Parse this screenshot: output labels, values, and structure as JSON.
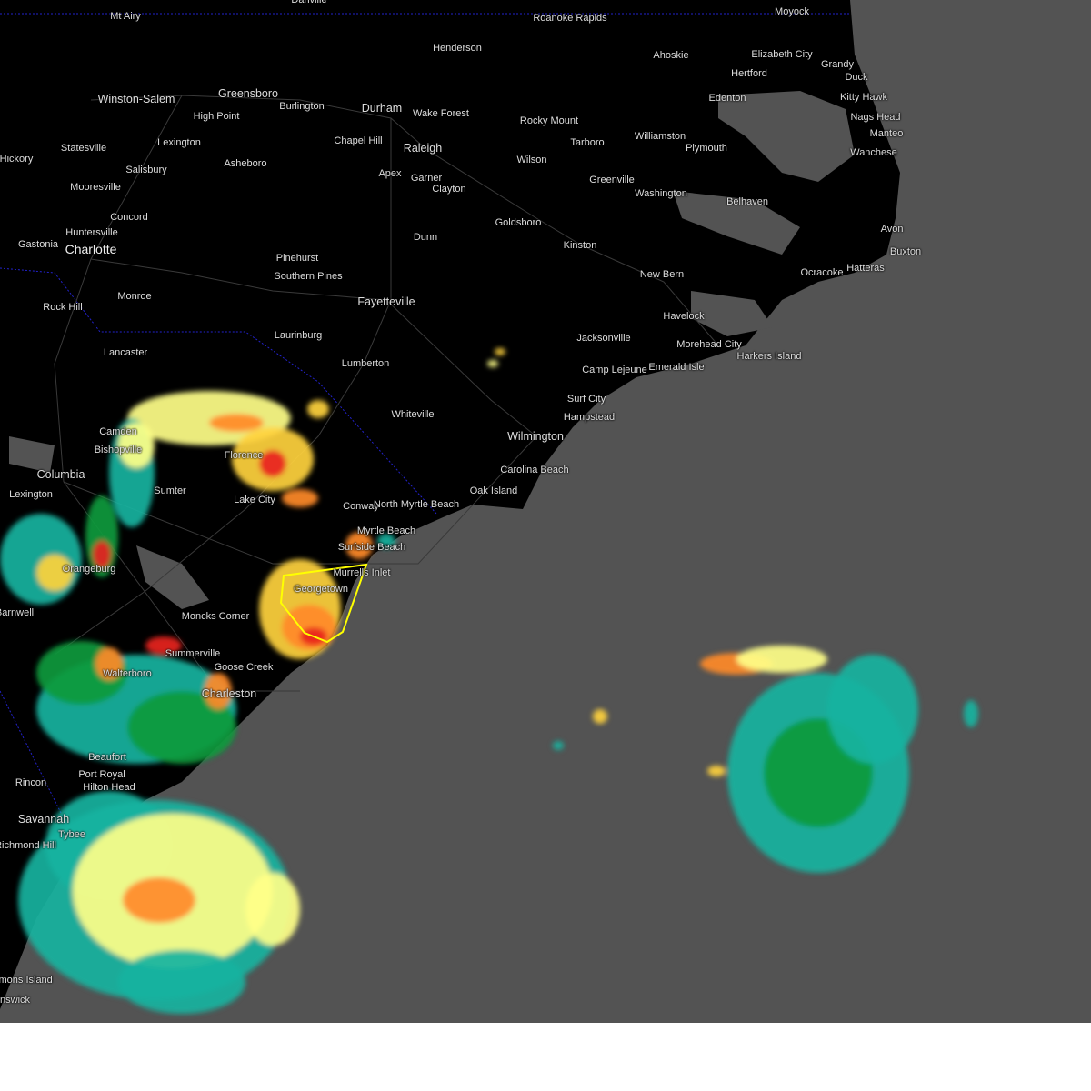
{
  "map": {
    "type": "weather-radar",
    "land_color": "#000000",
    "water_color": "#535353",
    "warning_polygon_color": "#ffff00",
    "reflectivity_colors": [
      "#14b3a0",
      "#0a9a3c",
      "#ffff88",
      "#ffd23c",
      "#ff8a28",
      "#e8231e",
      "#ff3cff"
    ],
    "cities": [
      "Mt Airy",
      "Danville",
      "Roanoke Rapids",
      "Moyock",
      "Henderson",
      "Ahoskie",
      "Elizabeth City",
      "Grandy",
      "Hertford",
      "Duck",
      "Winston-Salem",
      "Greensboro",
      "Burlington",
      "Durham",
      "Wake Forest",
      "Edenton",
      "Kitty Hawk",
      "High Point",
      "Nags Head",
      "Rocky Mount",
      "Manteo",
      "Chapel Hill",
      "Raleigh",
      "Tarboro",
      "Williamston",
      "Plymouth",
      "Statesville",
      "Lexington",
      "Wanchese",
      "Hickory",
      "Wilson",
      "Asheboro",
      "Salisbury",
      "Apex",
      "Garner",
      "Clayton",
      "Greenville",
      "Mooresville",
      "Washington",
      "Belhaven",
      "Concord",
      "Goldsboro",
      "Huntersville",
      "Gastonia",
      "Charlotte",
      "Avon",
      "Dunn",
      "Kinston",
      "Buxton",
      "Pinehurst",
      "Hatteras",
      "Ocracoke",
      "Southern Pines",
      "New Bern",
      "Monroe",
      "Fayetteville",
      "Rock Hill",
      "Havelock",
      "Laurinburg",
      "Jacksonville",
      "Morehead City",
      "Lancaster",
      "Camp Lejeune",
      "Emerald Isle",
      "Harkers Island",
      "Lumberton",
      "Surf City",
      "Whiteville",
      "Hampstead",
      "Wilmington",
      "Camden",
      "Bishopville",
      "Florence",
      "Columbia",
      "Carolina Beach",
      "Lexington",
      "Sumter",
      "Oak Island",
      "Lake City",
      "Conway",
      "North Myrtle Beach",
      "Myrtle Beach",
      "Surfside Beach",
      "Murrells Inlet",
      "Orangeburg",
      "Georgetown",
      "Barnwell",
      "Moncks Corner",
      "Summerville",
      "Goose Creek",
      "Walterboro",
      "Charleston",
      "Beaufort",
      "Port Royal",
      "Hilton Head",
      "Rincon",
      "Savannah",
      "Tybee",
      "Richmond Hill",
      "St. Simons Island",
      "Brunswick"
    ]
  }
}
